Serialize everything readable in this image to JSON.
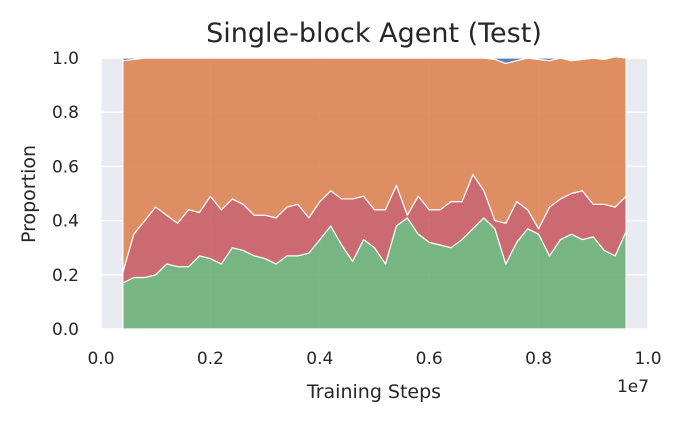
{
  "chart_data": {
    "type": "area",
    "title": "Single-block Agent (Test)",
    "xlabel": "Training Steps",
    "ylabel": "Proportion",
    "x_scale_label": "1e7",
    "xlim": [
      0.0,
      1.0
    ],
    "ylim": [
      0.0,
      1.0
    ],
    "x_ticks": [
      "0.0",
      "0.2",
      "0.4",
      "0.6",
      "0.8",
      "1.0"
    ],
    "y_ticks": [
      "0.0",
      "0.2",
      "0.4",
      "0.6",
      "0.8",
      "1.0"
    ],
    "grid": true,
    "stacked": true,
    "x": [
      0.04,
      0.06,
      0.08,
      0.1,
      0.12,
      0.14,
      0.16,
      0.18,
      0.2,
      0.22,
      0.24,
      0.26,
      0.28,
      0.3,
      0.32,
      0.34,
      0.36,
      0.38,
      0.4,
      0.42,
      0.44,
      0.46,
      0.48,
      0.5,
      0.52,
      0.54,
      0.56,
      0.58,
      0.6,
      0.62,
      0.64,
      0.66,
      0.68,
      0.7,
      0.72,
      0.74,
      0.76,
      0.78,
      0.8,
      0.82,
      0.84,
      0.86,
      0.88,
      0.9,
      0.92,
      0.94,
      0.96
    ],
    "series": [
      {
        "color": "#6aaf77",
        "values": [
          0.17,
          0.19,
          0.19,
          0.2,
          0.24,
          0.23,
          0.23,
          0.27,
          0.26,
          0.24,
          0.3,
          0.29,
          0.27,
          0.26,
          0.24,
          0.27,
          0.27,
          0.28,
          0.33,
          0.38,
          0.31,
          0.25,
          0.33,
          0.3,
          0.24,
          0.38,
          0.41,
          0.35,
          0.32,
          0.31,
          0.3,
          0.33,
          0.37,
          0.41,
          0.37,
          0.24,
          0.32,
          0.37,
          0.35,
          0.27,
          0.33,
          0.35,
          0.33,
          0.34,
          0.29,
          0.27,
          0.36
        ]
      },
      {
        "color": "#c85d63",
        "values": [
          0.04,
          0.16,
          0.21,
          0.25,
          0.18,
          0.16,
          0.21,
          0.16,
          0.23,
          0.2,
          0.18,
          0.17,
          0.15,
          0.16,
          0.17,
          0.18,
          0.19,
          0.13,
          0.14,
          0.13,
          0.17,
          0.23,
          0.16,
          0.14,
          0.2,
          0.15,
          0.01,
          0.14,
          0.12,
          0.13,
          0.17,
          0.14,
          0.2,
          0.1,
          0.03,
          0.15,
          0.15,
          0.07,
          0.02,
          0.18,
          0.15,
          0.15,
          0.18,
          0.12,
          0.17,
          0.18,
          0.13
        ]
      },
      {
        "color": "#dd8452",
        "values": [
          0.78,
          0.645,
          0.6,
          0.55,
          0.58,
          0.61,
          0.56,
          0.57,
          0.51,
          0.56,
          0.52,
          0.54,
          0.58,
          0.58,
          0.59,
          0.55,
          0.54,
          0.59,
          0.53,
          0.49,
          0.52,
          0.52,
          0.51,
          0.56,
          0.56,
          0.47,
          0.58,
          0.51,
          0.56,
          0.56,
          0.53,
          0.53,
          0.43,
          0.49,
          0.595,
          0.59,
          0.52,
          0.56,
          0.625,
          0.54,
          0.52,
          0.49,
          0.485,
          0.54,
          0.535,
          0.555,
          0.51
        ]
      },
      {
        "color": "#4c72b0",
        "values": [
          0.01,
          0.005,
          0.0,
          0.0,
          0.0,
          0.0,
          0.0,
          0.0,
          0.0,
          0.0,
          0.0,
          0.0,
          0.0,
          0.0,
          0.0,
          0.0,
          0.0,
          0.0,
          0.0,
          0.0,
          0.0,
          0.0,
          0.0,
          0.0,
          0.0,
          0.0,
          0.0,
          0.0,
          0.0,
          0.0,
          0.0,
          0.0,
          0.0,
          0.0,
          0.005,
          0.02,
          0.01,
          0.0,
          0.005,
          0.01,
          0.0,
          0.0,
          0.005,
          0.0,
          0.005,
          0.0,
          0.0
        ]
      }
    ]
  }
}
